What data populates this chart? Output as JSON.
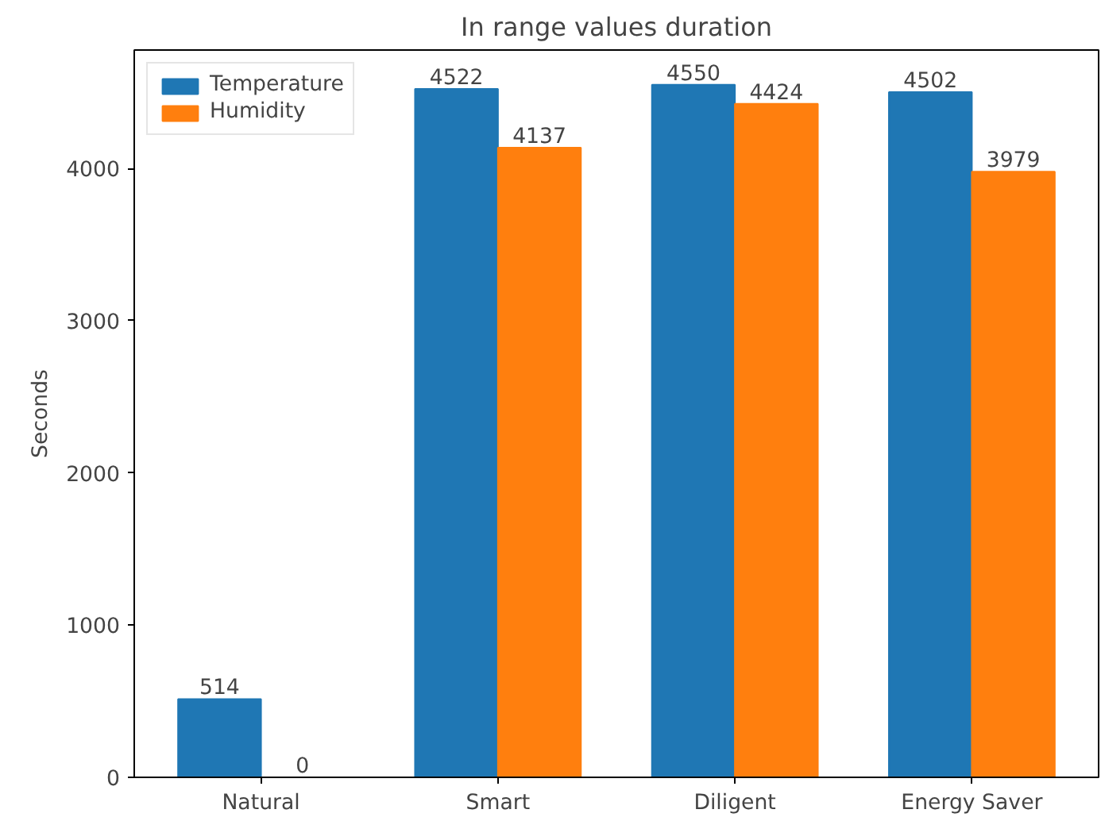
{
  "chart_data": {
    "type": "bar",
    "title": "In range values duration",
    "ylabel": "Seconds",
    "categories": [
      "Natural",
      "Smart",
      "Diligent",
      "Energy Saver"
    ],
    "series": [
      {
        "name": "Temperature",
        "color": "#1f77b4",
        "values": [
          514,
          4522,
          4550,
          4502
        ]
      },
      {
        "name": "Humidity",
        "color": "#ff7f0e",
        "values": [
          0,
          4137,
          4424,
          3979
        ]
      }
    ],
    "ylim": [
      0,
      4778
    ],
    "yticks": [
      0,
      1000,
      2000,
      3000,
      4000
    ],
    "data_labels": true,
    "legend": "top left",
    "grid": false
  }
}
